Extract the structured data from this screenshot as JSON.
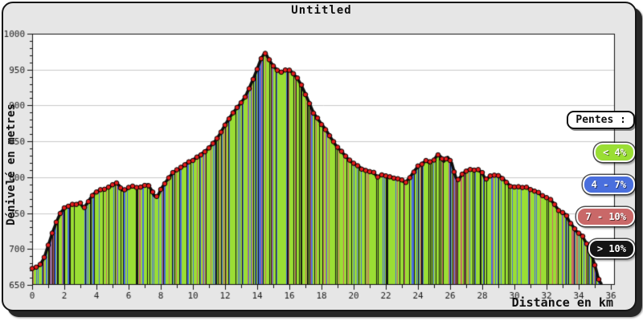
{
  "header": {
    "title": "Untitled"
  },
  "chart_data": {
    "type": "area",
    "title": "Untitled",
    "xlabel": "Distance en km",
    "ylabel": "Dénivelé en metres",
    "xlim": [
      0,
      36.25
    ],
    "ylim": [
      650,
      1000
    ],
    "x_ticks": [
      0,
      2,
      4,
      6,
      8,
      10,
      12,
      14,
      16,
      18,
      20,
      22,
      24,
      26,
      28,
      30,
      32,
      34,
      36
    ],
    "x_minor_step_km": 1,
    "y_ticks": [
      650,
      700,
      750,
      800,
      850,
      900,
      950,
      1000
    ],
    "y_minor_step_m": 10,
    "grid": "horizontal-only",
    "gridline_color": "#c9c9c9",
    "plot_bg": "#ffffff",
    "line_color": "#0d0d0d",
    "marker_color": "#e61e1e",
    "legend": {
      "title": "Pentes :",
      "position": "right",
      "entries": [
        {
          "label": "< 4%",
          "color": "#9ade34",
          "max_slope_pct": 4
        },
        {
          "label": "4 - 7%",
          "color": "#4a6fdd",
          "max_slope_pct": 7
        },
        {
          "label": "7 - 10%",
          "color": "#c96868",
          "max_slope_pct": 10
        },
        {
          "label": "> 10%",
          "color": "#141414",
          "max_slope_pct": null
        }
      ]
    },
    "series": [
      {
        "name": "elevation-profile",
        "units": {
          "x": "km",
          "y": "m"
        },
        "points": [
          [
            0,
            672
          ],
          [
            0.25,
            674
          ],
          [
            0.5,
            678
          ],
          [
            0.75,
            688
          ],
          [
            1,
            705
          ],
          [
            1.25,
            722
          ],
          [
            1.5,
            737
          ],
          [
            1.75,
            750
          ],
          [
            2,
            757
          ],
          [
            2.25,
            760
          ],
          [
            2.5,
            762
          ],
          [
            2.75,
            763
          ],
          [
            3,
            764
          ],
          [
            3.2,
            757
          ],
          [
            3.4,
            763
          ],
          [
            3.6,
            770
          ],
          [
            3.75,
            775
          ],
          [
            4,
            780
          ],
          [
            4.25,
            782
          ],
          [
            4.5,
            783
          ],
          [
            4.75,
            786
          ],
          [
            5,
            789
          ],
          [
            5.2,
            792
          ],
          [
            5.4,
            789
          ],
          [
            5.6,
            782
          ],
          [
            5.8,
            782
          ],
          [
            6,
            785
          ],
          [
            6.25,
            787
          ],
          [
            6.5,
            785
          ],
          [
            6.75,
            786
          ],
          [
            7,
            788
          ],
          [
            7.2,
            790
          ],
          [
            7.4,
            783
          ],
          [
            7.6,
            774
          ],
          [
            7.8,
            773
          ],
          [
            8,
            783
          ],
          [
            8.2,
            790
          ],
          [
            8.4,
            796
          ],
          [
            8.6,
            802
          ],
          [
            8.75,
            806
          ],
          [
            9,
            810
          ],
          [
            9.25,
            813
          ],
          [
            9.5,
            818
          ],
          [
            9.75,
            821
          ],
          [
            10,
            824
          ],
          [
            10.25,
            828
          ],
          [
            10.5,
            832
          ],
          [
            10.75,
            836
          ],
          [
            11,
            841
          ],
          [
            11.25,
            847
          ],
          [
            11.5,
            854
          ],
          [
            11.75,
            863
          ],
          [
            12,
            873
          ],
          [
            12.25,
            882
          ],
          [
            12.5,
            890
          ],
          [
            12.75,
            897
          ],
          [
            13,
            904
          ],
          [
            13.25,
            912
          ],
          [
            13.5,
            924
          ],
          [
            13.75,
            937
          ],
          [
            14,
            951
          ],
          [
            14.2,
            963
          ],
          [
            14.4,
            971
          ],
          [
            14.55,
            972
          ],
          [
            14.7,
            965
          ],
          [
            15,
            955
          ],
          [
            15.25,
            949
          ],
          [
            15.5,
            946
          ],
          [
            15.75,
            949
          ],
          [
            16,
            950
          ],
          [
            16.25,
            944
          ],
          [
            16.5,
            938
          ],
          [
            16.75,
            928
          ],
          [
            17,
            916
          ],
          [
            17.25,
            903
          ],
          [
            17.5,
            890
          ],
          [
            17.75,
            882
          ],
          [
            18,
            874
          ],
          [
            18.25,
            867
          ],
          [
            18.5,
            858
          ],
          [
            18.75,
            849
          ],
          [
            19,
            841
          ],
          [
            19.25,
            836
          ],
          [
            19.5,
            829
          ],
          [
            19.75,
            823
          ],
          [
            20,
            819
          ],
          [
            20.25,
            816
          ],
          [
            20.5,
            812
          ],
          [
            20.75,
            810
          ],
          [
            21,
            808
          ],
          [
            21.25,
            806
          ],
          [
            21.5,
            800
          ],
          [
            21.75,
            804
          ],
          [
            22,
            802
          ],
          [
            22.25,
            800
          ],
          [
            22.5,
            799
          ],
          [
            22.75,
            798
          ],
          [
            23,
            796
          ],
          [
            23.2,
            792
          ],
          [
            23.5,
            800
          ],
          [
            23.75,
            808
          ],
          [
            24,
            815
          ],
          [
            24.25,
            819
          ],
          [
            24.5,
            823
          ],
          [
            24.7,
            820
          ],
          [
            25,
            824
          ],
          [
            25.2,
            831
          ],
          [
            25.4,
            829
          ],
          [
            25.6,
            822
          ],
          [
            25.85,
            828
          ],
          [
            26.1,
            820
          ],
          [
            26.35,
            800
          ],
          [
            26.5,
            796
          ],
          [
            26.75,
            804
          ],
          [
            27,
            809
          ],
          [
            27.25,
            811
          ],
          [
            27.5,
            810
          ],
          [
            27.75,
            810
          ],
          [
            28,
            806
          ],
          [
            28.2,
            797
          ],
          [
            28.4,
            800
          ],
          [
            28.6,
            802
          ],
          [
            28.8,
            803
          ],
          [
            29,
            802
          ],
          [
            29.25,
            799
          ],
          [
            29.5,
            793
          ],
          [
            29.75,
            788
          ],
          [
            30,
            786
          ],
          [
            30.25,
            786
          ],
          [
            30.5,
            786
          ],
          [
            30.75,
            786
          ],
          [
            31,
            783
          ],
          [
            31.25,
            781
          ],
          [
            31.5,
            778
          ],
          [
            31.75,
            774
          ],
          [
            32,
            771
          ],
          [
            32.25,
            769
          ],
          [
            32.5,
            762
          ],
          [
            32.75,
            754
          ],
          [
            33,
            750
          ],
          [
            33.2,
            748
          ],
          [
            33.4,
            739
          ],
          [
            33.6,
            733
          ],
          [
            33.8,
            726
          ],
          [
            34,
            722
          ],
          [
            34.2,
            719
          ],
          [
            34.4,
            711
          ],
          [
            34.6,
            703
          ],
          [
            34.8,
            692
          ],
          [
            35,
            678
          ],
          [
            35.1,
            670
          ],
          [
            35.2,
            661
          ],
          [
            35.3,
            655
          ],
          [
            35.4,
            652
          ]
        ]
      }
    ]
  }
}
